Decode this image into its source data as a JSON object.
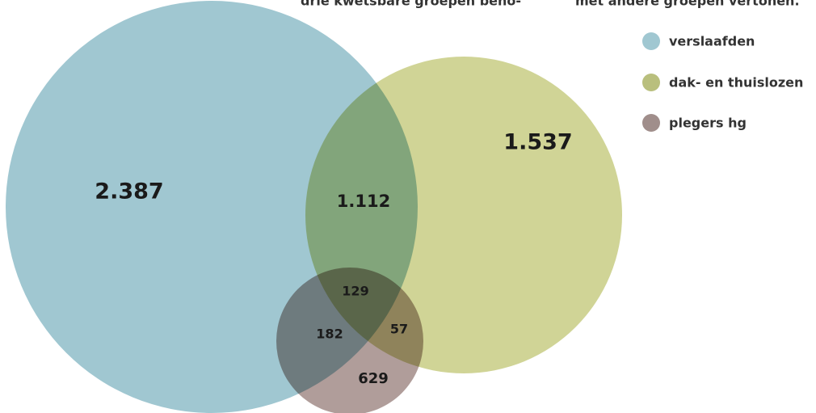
{
  "header": {
    "left_line": "drie kwetsbare groepen beho-",
    "right_line": "met andere groepen vertonen."
  },
  "legend": [
    {
      "label": "verslaafden"
    },
    {
      "label": "dak- en thuislozen"
    },
    {
      "label": "plegers hg"
    }
  ],
  "regions": {
    "verslaafden_only": "2.387",
    "dakloos_only": "1.537",
    "verslaafd_dakloos": "1.112",
    "all_three": "129",
    "verslaafd_plegers": "182",
    "dakloos_plegers": "57",
    "plegers_only": "629"
  }
}
